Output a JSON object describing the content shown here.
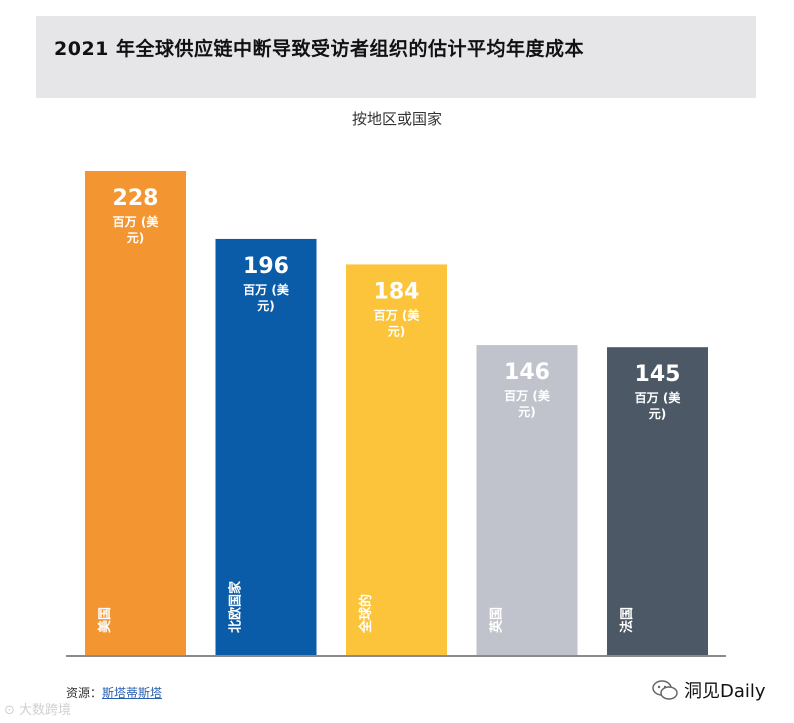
{
  "title": "2021 年全球供应链中断导致受访者组织的估计平均年度成本",
  "subtitle": "按地区或国家",
  "source": {
    "label": "资源：",
    "link": "斯塔蒂斯塔"
  },
  "watermark_left": "大数跨境",
  "brand": "洞见Daily",
  "unit_line1": "百万 (美",
  "unit_line2": "元)",
  "chart_data": {
    "type": "bar",
    "title": "2021 年全球供应链中断导致受访者组织的估计平均年度成本",
    "subtitle": "按地区或国家",
    "categories": [
      "美国",
      "北欧国家",
      "全球的",
      "英国",
      "法国"
    ],
    "values": [
      228,
      196,
      184,
      146,
      145
    ],
    "value_labels": [
      "228",
      "196",
      "184",
      "146",
      "145"
    ],
    "colors": [
      "#f39530",
      "#0a5ba8",
      "#fcc43a",
      "#c0c3cb",
      "#4d5866"
    ],
    "label_colors": [
      "#ffffff",
      "#ffffff",
      "#ffffff",
      "#ffffff",
      "#ffffff"
    ],
    "ylim": [
      0,
      228
    ],
    "grid": false
  }
}
